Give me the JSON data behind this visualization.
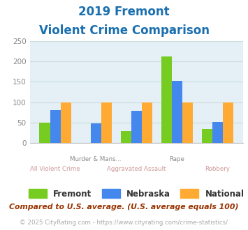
{
  "title_line1": "2019 Fremont",
  "title_line2": "Violent Crime Comparison",
  "title_color": "#1a6faf",
  "top_labels": [
    "",
    "Murder & Mans...",
    "",
    "Rape",
    ""
  ],
  "bottom_labels": [
    "All Violent Crime",
    "",
    "Aggravated Assault",
    "",
    "Robbery"
  ],
  "fremont": [
    50,
    0,
    28,
    213,
    33
  ],
  "nebraska": [
    80,
    47,
    78,
    152,
    51
  ],
  "national": [
    100,
    100,
    100,
    100,
    100
  ],
  "fremont_color": "#77cc22",
  "nebraska_color": "#4488ee",
  "national_color": "#ffaa33",
  "ylim": [
    0,
    250
  ],
  "yticks": [
    0,
    50,
    100,
    150,
    200,
    250
  ],
  "grid_color": "#ccdddd",
  "bg_color": "#e4f0f5",
  "legend_labels": [
    "Fremont",
    "Nebraska",
    "National"
  ],
  "footnote1": "Compared to U.S. average. (U.S. average equals 100)",
  "footnote2": "© 2025 CityRating.com - https://www.cityrating.com/crime-statistics/",
  "footnote1_color": "#993300",
  "footnote2_color": "#aaaaaa",
  "footnote2_link_color": "#4488ee"
}
